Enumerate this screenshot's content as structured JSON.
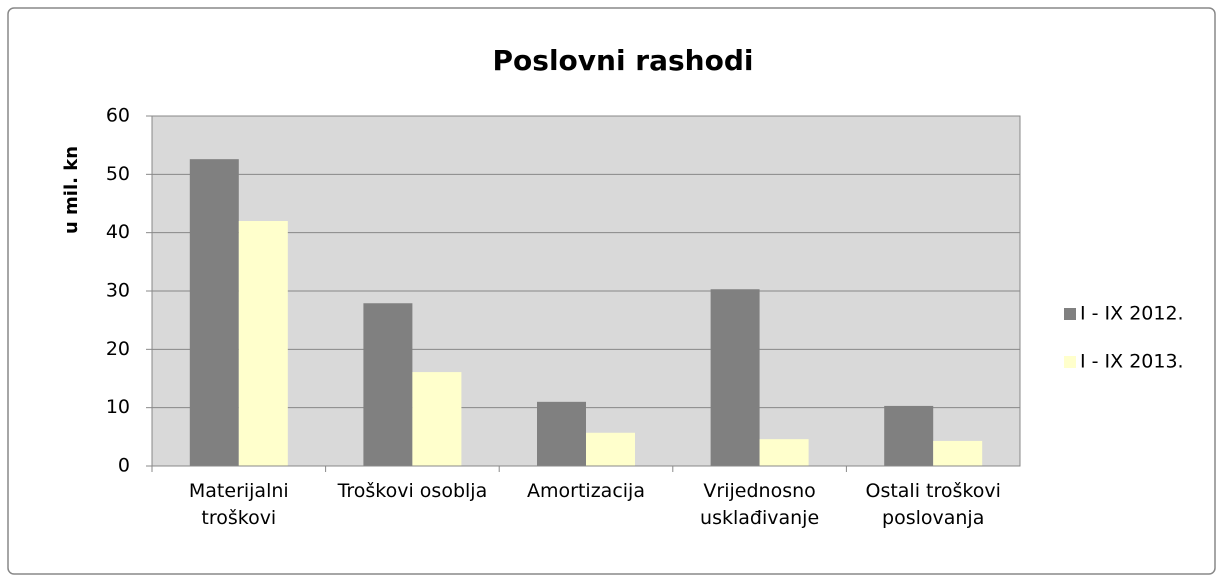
{
  "chart_data": {
    "type": "bar",
    "title": "Poslovni rashodi",
    "y_label": "u mil. kn",
    "categories": [
      "Materijalni troškovi",
      "Troškovi osoblja",
      "Amortizacija",
      "Vrijednosno usklađivanje",
      "Ostali troškovi poslovanja"
    ],
    "series": [
      {
        "name": "I - IX 2012.",
        "color": "#808080",
        "values": [
          52.6,
          27.9,
          11,
          30.3,
          10.3
        ]
      },
      {
        "name": "I - IX 2013.",
        "color": "#ffffcc",
        "values": [
          42,
          16.1,
          5.7,
          4.6,
          4.3
        ]
      }
    ],
    "ylim": [
      0,
      60
    ],
    "yticks": [
      0,
      10,
      20,
      30,
      40,
      50,
      60
    ],
    "grid": true,
    "legend": "right"
  }
}
